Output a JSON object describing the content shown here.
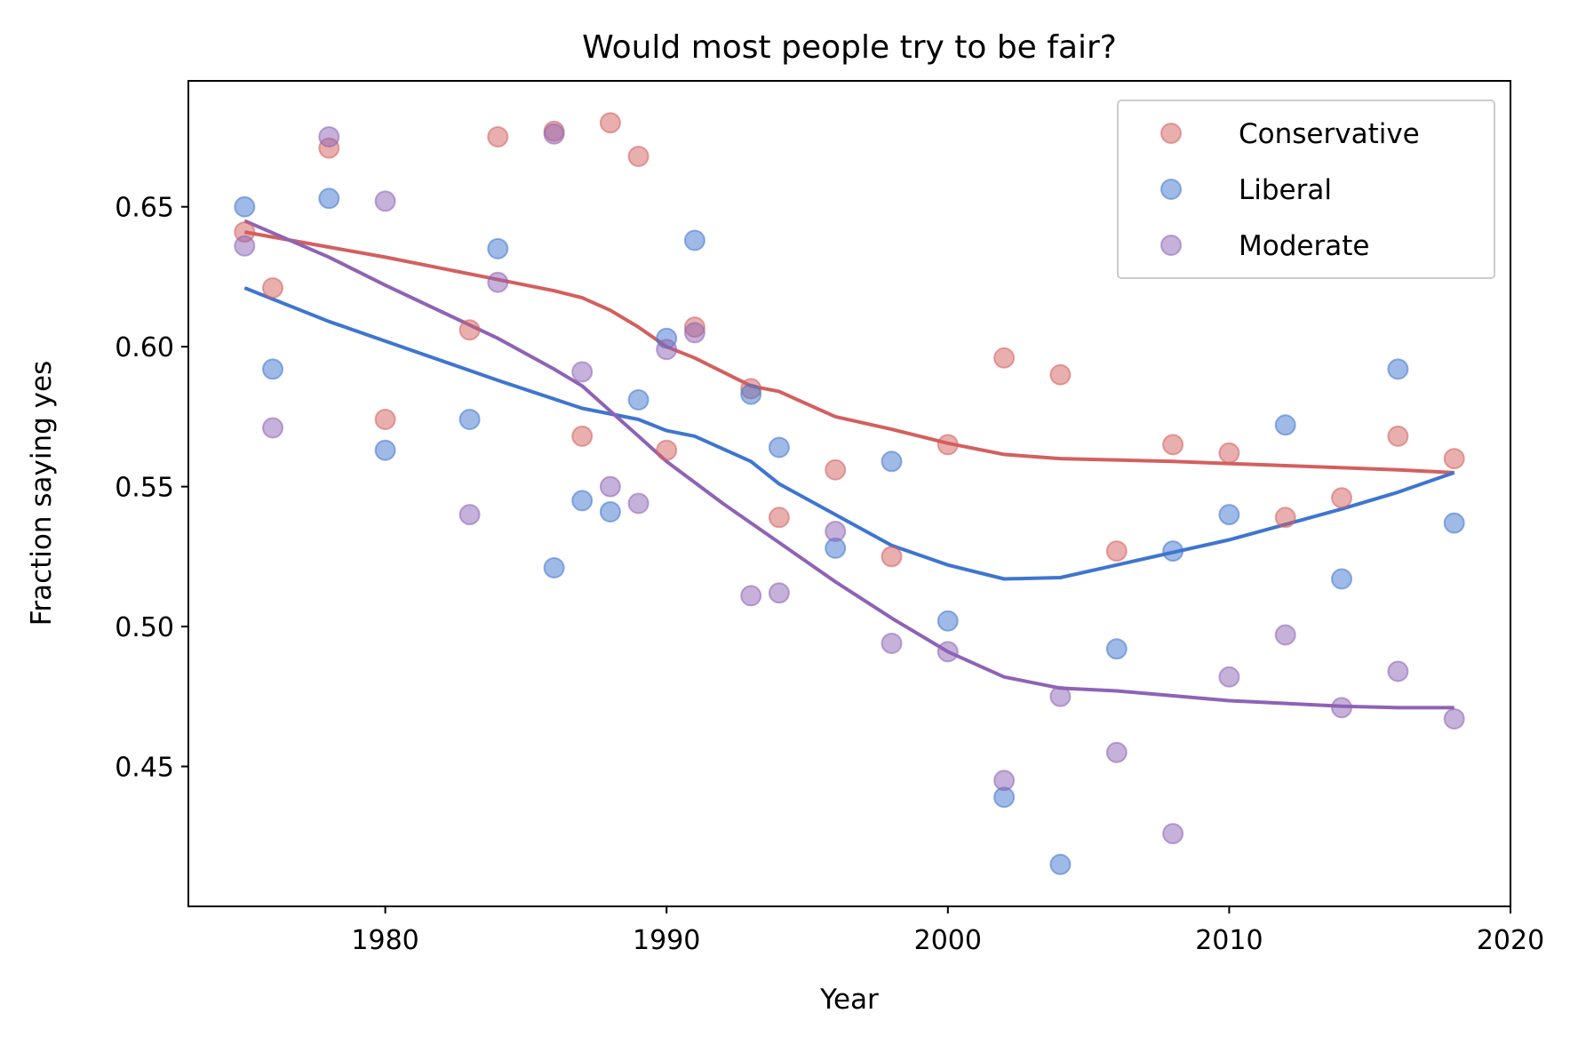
{
  "chart_data": {
    "type": "scatter",
    "title": "Would most people try to be fair?",
    "xlabel": "Year",
    "ylabel": "Fraction saying yes",
    "xlim": [
      1973,
      2020
    ],
    "ylim": [
      0.4,
      0.695
    ],
    "xticks": [
      1980,
      1990,
      2000,
      2010,
      2020
    ],
    "yticks": [
      0.45,
      0.5,
      0.55,
      0.6,
      0.65
    ],
    "xtick_labels": [
      "1980",
      "1990",
      "2000",
      "2010",
      "2020"
    ],
    "ytick_labels": [
      "0.45",
      "0.50",
      "0.55",
      "0.60",
      "0.65"
    ],
    "grid": false,
    "legend_position": "top-right",
    "series": [
      {
        "name": "Conservative",
        "color": "#d45f5f",
        "points": [
          [
            1975,
            0.641
          ],
          [
            1976,
            0.621
          ],
          [
            1978,
            0.671
          ],
          [
            1980,
            0.574
          ],
          [
            1983,
            0.606
          ],
          [
            1984,
            0.675
          ],
          [
            1986,
            0.677
          ],
          [
            1987,
            0.568
          ],
          [
            1988,
            0.68
          ],
          [
            1989,
            0.668
          ],
          [
            1990,
            0.563
          ],
          [
            1991,
            0.607
          ],
          [
            1993,
            0.585
          ],
          [
            1994,
            0.539
          ],
          [
            1996,
            0.556
          ],
          [
            1998,
            0.525
          ],
          [
            2000,
            0.565
          ],
          [
            2002,
            0.596
          ],
          [
            2004,
            0.59
          ],
          [
            2006,
            0.527
          ],
          [
            2008,
            0.565
          ],
          [
            2010,
            0.562
          ],
          [
            2012,
            0.539
          ],
          [
            2014,
            0.546
          ],
          [
            2016,
            0.568
          ],
          [
            2018,
            0.56
          ]
        ],
        "trend": [
          [
            1975,
            0.641
          ],
          [
            1980,
            0.632
          ],
          [
            1984,
            0.624
          ],
          [
            1986,
            0.62
          ],
          [
            1987,
            0.6175
          ],
          [
            1988,
            0.613
          ],
          [
            1989,
            0.607
          ],
          [
            1990,
            0.6
          ],
          [
            1991,
            0.596
          ],
          [
            1993,
            0.586
          ],
          [
            1994,
            0.584
          ],
          [
            1996,
            0.575
          ],
          [
            1998,
            0.5705
          ],
          [
            2000,
            0.5655
          ],
          [
            2002,
            0.5615
          ],
          [
            2004,
            0.56
          ],
          [
            2008,
            0.559
          ],
          [
            2012,
            0.5575
          ],
          [
            2016,
            0.556
          ],
          [
            2018,
            0.555
          ]
        ]
      },
      {
        "name": "Liberal",
        "color": "#3f75d0",
        "points": [
          [
            1975,
            0.65
          ],
          [
            1976,
            0.592
          ],
          [
            1978,
            0.653
          ],
          [
            1980,
            0.563
          ],
          [
            1983,
            0.574
          ],
          [
            1984,
            0.635
          ],
          [
            1986,
            0.521
          ],
          [
            1987,
            0.545
          ],
          [
            1988,
            0.541
          ],
          [
            1989,
            0.581
          ],
          [
            1990,
            0.603
          ],
          [
            1991,
            0.638
          ],
          [
            1993,
            0.583
          ],
          [
            1994,
            0.564
          ],
          [
            1996,
            0.528
          ],
          [
            1998,
            0.559
          ],
          [
            2000,
            0.502
          ],
          [
            2002,
            0.439
          ],
          [
            2004,
            0.415
          ],
          [
            2006,
            0.492
          ],
          [
            2008,
            0.527
          ],
          [
            2010,
            0.54
          ],
          [
            2012,
            0.572
          ],
          [
            2014,
            0.517
          ],
          [
            2016,
            0.592
          ],
          [
            2018,
            0.537
          ]
        ],
        "trend": [
          [
            1975,
            0.621
          ],
          [
            1978,
            0.609
          ],
          [
            1980,
            0.602
          ],
          [
            1984,
            0.588
          ],
          [
            1987,
            0.578
          ],
          [
            1989,
            0.574
          ],
          [
            1990,
            0.57
          ],
          [
            1991,
            0.568
          ],
          [
            1993,
            0.559
          ],
          [
            1994,
            0.551
          ],
          [
            1996,
            0.54
          ],
          [
            1998,
            0.529
          ],
          [
            2000,
            0.522
          ],
          [
            2002,
            0.517
          ],
          [
            2004,
            0.5175
          ],
          [
            2006,
            0.522
          ],
          [
            2010,
            0.531
          ],
          [
            2014,
            0.542
          ],
          [
            2016,
            0.548
          ],
          [
            2018,
            0.555
          ]
        ]
      },
      {
        "name": "Moderate",
        "color": "#8e63b5",
        "points": [
          [
            1975,
            0.636
          ],
          [
            1976,
            0.571
          ],
          [
            1978,
            0.675
          ],
          [
            1980,
            0.652
          ],
          [
            1983,
            0.54
          ],
          [
            1984,
            0.623
          ],
          [
            1986,
            0.676
          ],
          [
            1987,
            0.591
          ],
          [
            1988,
            0.55
          ],
          [
            1989,
            0.544
          ],
          [
            1990,
            0.599
          ],
          [
            1991,
            0.605
          ],
          [
            1993,
            0.511
          ],
          [
            1994,
            0.512
          ],
          [
            1996,
            0.534
          ],
          [
            1998,
            0.494
          ],
          [
            2000,
            0.491
          ],
          [
            2002,
            0.445
          ],
          [
            2004,
            0.475
          ],
          [
            2006,
            0.455
          ],
          [
            2008,
            0.426
          ],
          [
            2010,
            0.482
          ],
          [
            2012,
            0.497
          ],
          [
            2014,
            0.471
          ],
          [
            2016,
            0.484
          ],
          [
            2018,
            0.467
          ]
        ],
        "trend": [
          [
            1975,
            0.645
          ],
          [
            1978,
            0.632
          ],
          [
            1980,
            0.622
          ],
          [
            1984,
            0.603
          ],
          [
            1986,
            0.592
          ],
          [
            1987,
            0.586
          ],
          [
            1988,
            0.577
          ],
          [
            1989,
            0.568
          ],
          [
            1990,
            0.559
          ],
          [
            1992,
            0.544
          ],
          [
            1994,
            0.53
          ],
          [
            1996,
            0.516
          ],
          [
            1998,
            0.503
          ],
          [
            2000,
            0.491
          ],
          [
            2002,
            0.482
          ],
          [
            2004,
            0.478
          ],
          [
            2006,
            0.477
          ],
          [
            2010,
            0.4735
          ],
          [
            2014,
            0.4715
          ],
          [
            2016,
            0.471
          ],
          [
            2018,
            0.471
          ]
        ]
      }
    ]
  }
}
